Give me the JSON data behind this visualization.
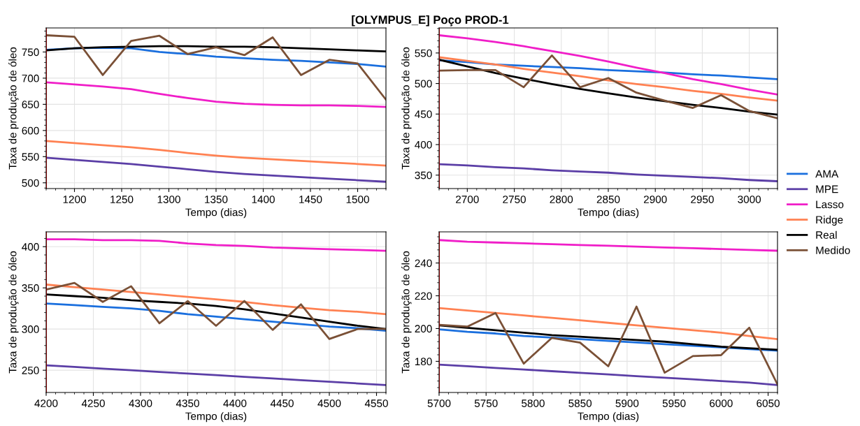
{
  "chart_data": [
    {
      "type": "line",
      "title": "[OLYMPUS_E] Poço PROD-1",
      "xlabel": "Tempo (dias)",
      "ylabel": "Taxa de produção de óleo",
      "x": [
        1170,
        1200,
        1230,
        1260,
        1290,
        1320,
        1350,
        1380,
        1410,
        1440,
        1470,
        1500,
        1530
      ],
      "xlim": [
        1170,
        1530
      ],
      "xticks": [
        1200,
        1250,
        1300,
        1350,
        1400,
        1450,
        1500
      ],
      "ylim": [
        489,
        796
      ],
      "yticks": [
        500,
        550,
        600,
        650,
        700,
        750
      ],
      "grid": true,
      "legend": "right",
      "ref_lines": [
        {
          "axis": "x",
          "value": 1170,
          "color": "#ff0000"
        }
      ],
      "series": [
        {
          "name": "AMA",
          "color": "#1a6fde",
          "values": [
            754,
            757,
            758,
            757,
            750,
            746,
            741,
            738,
            735,
            733,
            730,
            727,
            722
          ]
        },
        {
          "name": "MPE",
          "color": "#5b3ea6",
          "values": [
            548,
            544,
            540,
            536,
            531,
            526,
            521,
            517,
            514,
            511,
            508,
            505,
            502
          ]
        },
        {
          "name": "Lasso",
          "color": "#f01ec8",
          "values": [
            692,
            688,
            684,
            679,
            670,
            662,
            655,
            651,
            649,
            648,
            648,
            647,
            645
          ]
        },
        {
          "name": "Ridge",
          "color": "#ff8152",
          "values": [
            580,
            576,
            572,
            568,
            563,
            557,
            552,
            548,
            545,
            542,
            539,
            536,
            533
          ]
        },
        {
          "name": "Real",
          "color": "#000000",
          "values": [
            753,
            757,
            759,
            760,
            761,
            761,
            760,
            760,
            759,
            757,
            755,
            753,
            751
          ]
        },
        {
          "name": "Medido",
          "color": "#7a5036",
          "values": [
            782,
            779,
            706,
            771,
            781,
            746,
            759,
            744,
            778,
            706,
            735,
            728,
            659
          ]
        }
      ]
    },
    {
      "type": "line",
      "xlabel": "Tempo (dias)",
      "ylabel": "Taxa de produção de óleo",
      "x": [
        2670,
        2700,
        2730,
        2760,
        2790,
        2820,
        2850,
        2880,
        2910,
        2940,
        2970,
        3000,
        3030
      ],
      "xlim": [
        2670,
        3030
      ],
      "xticks": [
        2700,
        2750,
        2800,
        2850,
        2900,
        2950,
        3000
      ],
      "ylim": [
        328,
        591
      ],
      "yticks": [
        350,
        400,
        450,
        500,
        550
      ],
      "grid": true,
      "ref_lines": [
        {
          "axis": "x",
          "value": 2670,
          "color": "#ff0000"
        }
      ],
      "series": [
        {
          "color": "#1a6fde",
          "values": [
            538,
            535,
            531,
            529,
            527,
            525,
            522,
            520,
            518,
            515,
            513,
            510,
            507
          ]
        },
        {
          "color": "#5b3ea6",
          "values": [
            368,
            366,
            363,
            361,
            358,
            356,
            354,
            351,
            349,
            347,
            345,
            342,
            340
          ]
        },
        {
          "color": "#f01ec8",
          "values": [
            579,
            574,
            568,
            561,
            553,
            545,
            536,
            526,
            517,
            507,
            499,
            490,
            482
          ]
        },
        {
          "color": "#ff8152",
          "values": [
            543,
            537,
            531,
            524,
            518,
            512,
            505,
            499,
            494,
            488,
            483,
            477,
            472
          ]
        },
        {
          "color": "#000000",
          "values": [
            539,
            528,
            517,
            508,
            499,
            491,
            484,
            477,
            471,
            465,
            460,
            454,
            449
          ]
        },
        {
          "color": "#7a5036",
          "values": [
            521,
            522,
            522,
            494,
            546,
            494,
            509,
            485,
            472,
            460,
            481,
            455,
            443
          ]
        }
      ]
    },
    {
      "type": "line",
      "xlabel": "Tempo (dias)",
      "ylabel": "Taxa de produção de óleo",
      "x": [
        4200,
        4230,
        4260,
        4290,
        4320,
        4350,
        4380,
        4410,
        4440,
        4470,
        4500,
        4530,
        4560
      ],
      "xlim": [
        4200,
        4560
      ],
      "xticks": [
        4200,
        4250,
        4300,
        4350,
        4400,
        4450,
        4500,
        4550
      ],
      "ylim": [
        223,
        418
      ],
      "yticks": [
        250,
        300,
        350,
        400
      ],
      "grid": true,
      "ref_lines": [
        {
          "axis": "x",
          "value": 4200,
          "color": "#ff0000"
        }
      ],
      "series": [
        {
          "color": "#1a6fde",
          "values": [
            331,
            329,
            327,
            325,
            322,
            318,
            315,
            312,
            309,
            306,
            303,
            301,
            298
          ]
        },
        {
          "color": "#5b3ea6",
          "values": [
            256,
            254,
            252,
            250,
            248,
            246,
            244,
            242,
            240,
            238,
            236,
            234,
            232
          ]
        },
        {
          "color": "#f01ec8",
          "values": [
            409,
            409,
            408,
            408,
            407,
            404,
            402,
            401,
            399,
            398,
            397,
            396,
            395
          ]
        },
        {
          "color": "#ff8152",
          "values": [
            354,
            351,
            348,
            345,
            342,
            339,
            336,
            333,
            329,
            326,
            323,
            321,
            318
          ]
        },
        {
          "color": "#000000",
          "values": [
            342,
            340,
            338,
            335,
            333,
            331,
            328,
            324,
            319,
            314,
            309,
            304,
            300
          ]
        },
        {
          "color": "#7a5036",
          "values": [
            348,
            356,
            333,
            352,
            307,
            334,
            304,
            334,
            299,
            330,
            288,
            300,
            300
          ]
        }
      ]
    },
    {
      "type": "line",
      "xlabel": "Tempo (dias)",
      "ylabel": "Taxa de produção de óleo",
      "x": [
        5700,
        5730,
        5760,
        5790,
        5820,
        5850,
        5880,
        5910,
        5940,
        5970,
        6000,
        6030,
        6060
      ],
      "xlim": [
        5700,
        6060
      ],
      "xticks": [
        5700,
        5750,
        5800,
        5850,
        5900,
        5950,
        6000,
        6050
      ],
      "ylim": [
        161,
        259
      ],
      "yticks": [
        180,
        200,
        220,
        240
      ],
      "grid": true,
      "ref_lines": [
        {
          "axis": "x",
          "value": 5700,
          "color": "#ff0000"
        }
      ],
      "series": [
        {
          "color": "#1a6fde",
          "values": [
            199.5,
            198,
            197,
            195.5,
            194.5,
            193.5,
            192.5,
            191.5,
            190.5,
            189.5,
            188.5,
            187.5,
            186.5
          ]
        },
        {
          "color": "#5b3ea6",
          "values": [
            178,
            177,
            176,
            175,
            174,
            173,
            172,
            171,
            170,
            169,
            168,
            167,
            165.5
          ]
        },
        {
          "color": "#f01ec8",
          "values": [
            254,
            253,
            252.5,
            252,
            251.5,
            251,
            250.5,
            250,
            249.5,
            249,
            248.5,
            248,
            247.5
          ]
        },
        {
          "color": "#ff8152",
          "values": [
            212.5,
            211,
            209.5,
            208,
            206.5,
            205,
            203.5,
            202,
            200.5,
            199,
            197.5,
            195.5,
            193.5
          ]
        },
        {
          "color": "#000000",
          "values": [
            202,
            200.5,
            199,
            197.5,
            196,
            195,
            194,
            193,
            192,
            190.5,
            189,
            188,
            187
          ]
        },
        {
          "color": "#7a5036",
          "values": [
            202.3,
            201.2,
            209.5,
            178.6,
            194.3,
            191.4,
            177,
            213.4,
            173.1,
            183.2,
            183.8,
            200.5,
            165.9
          ]
        }
      ]
    }
  ]
}
